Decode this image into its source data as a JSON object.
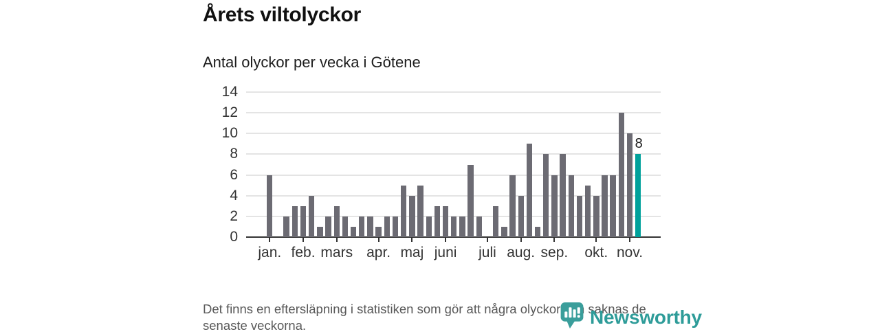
{
  "header": {
    "title": "Årets viltolyckor",
    "subtitle": "Antal olyckor per vecka i Götene"
  },
  "footer": {
    "note": "Det finns en eftersläpning i statistiken som gör att några olyckor kan saknas de senaste veckorna."
  },
  "branding": {
    "logo_text": "Newsworthy",
    "logo_icon": "newsworthy-pin-barchart-icon"
  },
  "colors": {
    "bar": "#6c6b73",
    "highlight": "#00a19b",
    "gridline": "#e4e4e4",
    "axis": "#333333",
    "logo": "#2e9c99",
    "text": "#111111",
    "muted_text": "#585858"
  },
  "chart_data": {
    "type": "bar",
    "title": "Årets viltolyckor",
    "subtitle": "Antal olyckor per vecka i Götene",
    "x_unit": "vecka (week number)",
    "ylabel": "Antal olyckor",
    "ylim": [
      0,
      14
    ],
    "yticks": [
      0,
      2,
      4,
      6,
      8,
      10,
      12,
      14
    ],
    "grid": true,
    "weeks": [
      1,
      2,
      3,
      4,
      5,
      6,
      7,
      8,
      9,
      10,
      11,
      12,
      13,
      14,
      15,
      16,
      17,
      18,
      19,
      20,
      21,
      22,
      23,
      24,
      25,
      26,
      27,
      28,
      29,
      30,
      31,
      32,
      33,
      34,
      35,
      36,
      37,
      38,
      39,
      40,
      41,
      42,
      43,
      44,
      45
    ],
    "values": [
      6,
      0,
      2,
      3,
      3,
      4,
      1,
      2,
      3,
      2,
      1,
      2,
      2,
      1,
      2,
      2,
      5,
      4,
      5,
      2,
      3,
      3,
      2,
      2,
      7,
      2,
      0,
      3,
      1,
      6,
      4,
      9,
      1,
      8,
      6,
      8,
      6,
      4,
      5,
      4,
      6,
      6,
      12,
      10,
      8
    ],
    "highlight_last": true,
    "last_value_label": "8",
    "xticks": [
      {
        "label": "jan.",
        "week": 1
      },
      {
        "label": "feb.",
        "week": 5
      },
      {
        "label": "mars",
        "week": 9
      },
      {
        "label": "apr.",
        "week": 14
      },
      {
        "label": "maj",
        "week": 18
      },
      {
        "label": "juni",
        "week": 22
      },
      {
        "label": "juli",
        "week": 27
      },
      {
        "label": "aug.",
        "week": 31
      },
      {
        "label": "sep.",
        "week": 35
      },
      {
        "label": "okt.",
        "week": 40
      },
      {
        "label": "nov.",
        "week": 44
      }
    ],
    "legend": "none"
  }
}
